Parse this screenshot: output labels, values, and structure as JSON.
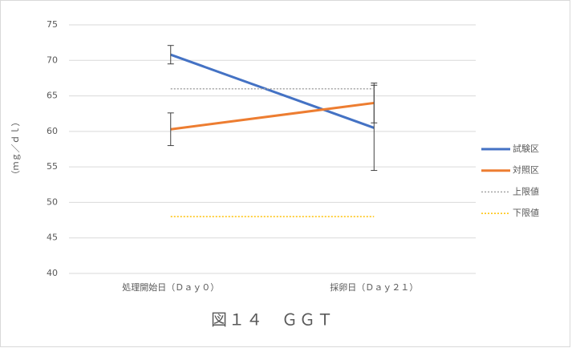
{
  "chart_data": {
    "type": "line",
    "title": "図１４　ＧＧＴ",
    "y_label": "（ｍｇ／ｄｌ）",
    "categories": [
      "処理開始日（Ｄａｙ０）",
      "採卵日（Ｄａｙ２１）"
    ],
    "ylim": [
      40,
      75
    ],
    "yticks": [
      40,
      45,
      50,
      55,
      60,
      65,
      70,
      75
    ],
    "grid": true,
    "legend": "right",
    "series": [
      {
        "name": "試験区",
        "color": "#4472c4",
        "style": "solid",
        "values": [
          70.8,
          60.5
        ],
        "errors": [
          1.3,
          6.0
        ]
      },
      {
        "name": "対照区",
        "color": "#ed7d31",
        "style": "solid",
        "values": [
          60.3,
          64.0
        ],
        "errors": [
          2.3,
          2.8
        ]
      },
      {
        "name": "上限値",
        "color": "#a5a5a5",
        "style": "dotted",
        "values": [
          66,
          66
        ]
      },
      {
        "name": "下限値",
        "color": "#ffc000",
        "style": "dotted",
        "values": [
          48,
          48
        ]
      }
    ]
  }
}
